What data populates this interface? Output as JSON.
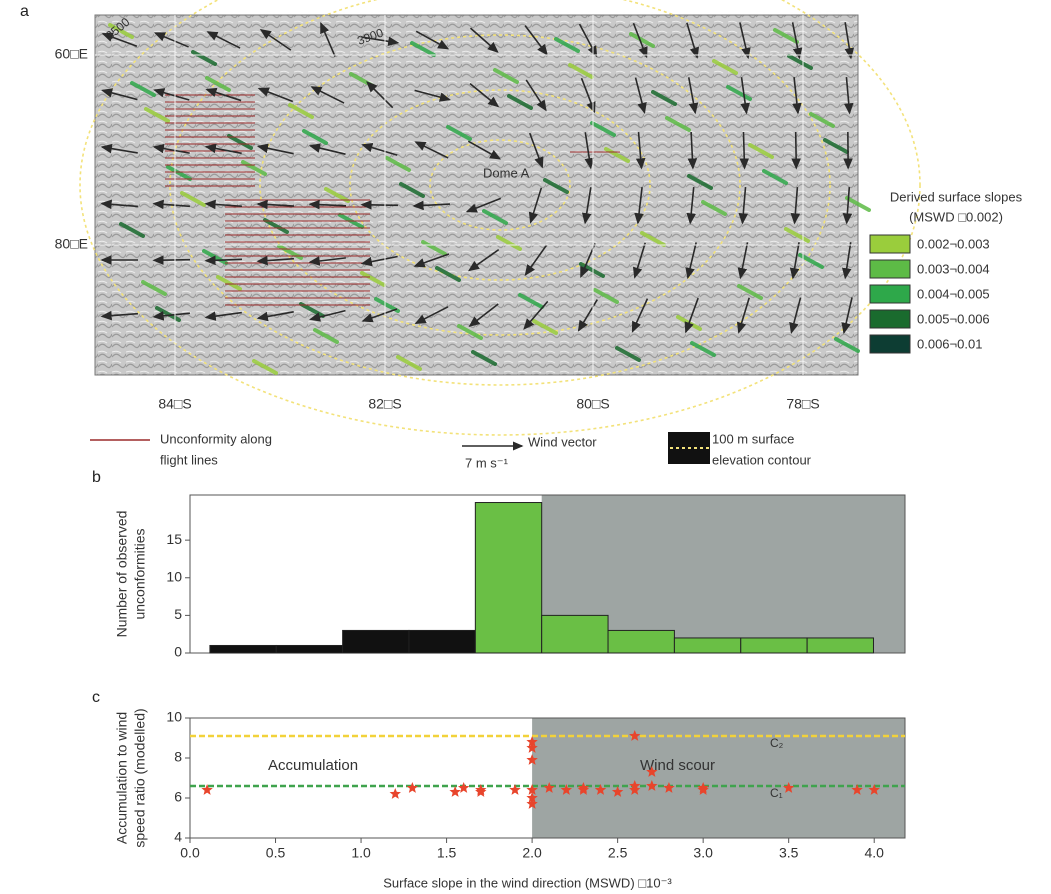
{
  "panel_labels": [
    "a",
    "b",
    "c"
  ],
  "map": {
    "lat_labels": [
      "60□E",
      "80□E"
    ],
    "lon_labels": [
      "84□S",
      "82□S",
      "80□S",
      "78□S"
    ],
    "contour_labels": [
      "3500",
      "3900"
    ],
    "place_label": "Dome A",
    "legend_title": [
      "Derived surface slopes",
      "(MSWD □0.002)"
    ],
    "legend_items": [
      {
        "label": "0.002¬0.003",
        "color": "#9acd3c"
      },
      {
        "label": "0.003¬0.004",
        "color": "#5dbb46"
      },
      {
        "label": "0.004¬0.005",
        "color": "#2ea84a"
      },
      {
        "label": "0.005¬0.006",
        "color": "#1a6b2e"
      },
      {
        "label": "0.006¬0.01",
        "color": "#0d3d33"
      }
    ],
    "key": {
      "unconformity": [
        "Unconformity along",
        "flight lines"
      ],
      "wind_scale": "7 m s⁻¹",
      "wind": "Wind vector",
      "contour": [
        "100 m surface",
        "elevation contour"
      ]
    }
  },
  "chart_data": [
    {
      "type": "histogram",
      "y_label": [
        "Number of observed",
        "unconformities"
      ],
      "bins": [
        0.4,
        0.8,
        1.2,
        1.6,
        2.0,
        2.4,
        2.8,
        3.2,
        3.6,
        4.0,
        4.4
      ],
      "values": [
        1,
        1,
        3,
        3,
        20,
        5,
        3,
        2,
        2,
        2
      ],
      "colors": [
        "#111111",
        "#111111",
        "#111111",
        "#111111",
        "#6abf45",
        "#6abf45",
        "#6abf45",
        "#6abf45",
        "#6abf45",
        "#6abf45"
      ],
      "shaded_region": [
        2.4,
        4.59
      ],
      "xlim": [
        0.28,
        4.59
      ],
      "ylim": [
        0,
        21
      ],
      "yticks": [
        0,
        5,
        10,
        15
      ]
    },
    {
      "type": "scatter",
      "x_label": "Surface slope in the wind direction (MSWD) □10⁻³",
      "y_label": [
        "Accumulation to wind",
        "speed ratio (modelled)"
      ],
      "annotations": [
        "Accumulation",
        "Wind scour"
      ],
      "x": [
        0.1,
        1.2,
        1.3,
        1.55,
        1.6,
        1.7,
        1.7,
        1.9,
        2.0,
        2.0,
        2.0,
        2.0,
        2.0,
        2.0,
        2.1,
        2.2,
        2.3,
        2.3,
        2.4,
        2.5,
        2.6,
        2.6,
        2.6,
        2.7,
        2.7,
        2.8,
        3.0,
        3.0,
        3.5,
        3.9,
        4.0
      ],
      "values": [
        6.4,
        6.2,
        6.5,
        6.3,
        6.5,
        6.4,
        6.3,
        6.4,
        8.8,
        8.5,
        7.9,
        6.4,
        6.0,
        5.7,
        6.5,
        6.4,
        6.5,
        6.4,
        6.4,
        6.3,
        9.1,
        6.6,
        6.4,
        7.3,
        6.6,
        6.5,
        6.5,
        6.4,
        6.5,
        6.4,
        6.4
      ],
      "color": "#e8452c",
      "reference_lines": [
        {
          "label": "C₂",
          "value": 9.1,
          "color": "#f2d23a"
        },
        {
          "label": "C₁",
          "value": 6.6,
          "color": "#3fa34d"
        }
      ],
      "shaded_region": [
        2.0,
        4.18
      ],
      "xlim": [
        0,
        4.18
      ],
      "ylim": [
        4,
        10
      ],
      "xticks": [
        {
          "value": 0,
          "label": "0.0"
        },
        0.5,
        {
          "value": 1,
          "label": "1.0"
        },
        1.5,
        {
          "value": 2,
          "label": "2.0"
        },
        2.5,
        {
          "value": 3,
          "label": "3.0"
        },
        3.5,
        {
          "value": 4,
          "label": "4.0"
        }
      ],
      "yticks": [
        4,
        6,
        8,
        10
      ]
    }
  ]
}
